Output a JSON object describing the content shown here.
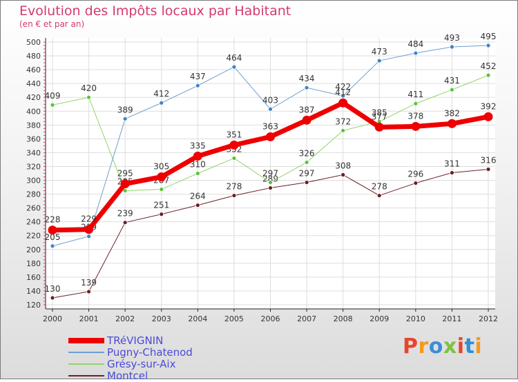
{
  "title": "Evolution des Impôts locaux par Habitant",
  "subtitle": "(en € et par an)",
  "brand": "Proxiti",
  "brand_colors": [
    "#e8452c",
    "#f49a1a",
    "#3a8fd6",
    "#7cc242",
    "#e8452c",
    "#2f8fd6",
    "#f49a1a"
  ],
  "chart_data": {
    "type": "line",
    "title": "Evolution des Impôts locaux par Habitant",
    "xlabel": "",
    "ylabel": "",
    "x": [
      2000,
      2001,
      2002,
      2003,
      2004,
      2005,
      2006,
      2007,
      2008,
      2009,
      2010,
      2011,
      2012
    ],
    "ylim": [
      120,
      500
    ],
    "yticks": [
      120,
      140,
      160,
      180,
      200,
      220,
      240,
      260,
      280,
      300,
      320,
      340,
      360,
      380,
      400,
      420,
      440,
      460,
      480,
      500
    ],
    "grid": true,
    "legend_position": "bottom-left",
    "series": [
      {
        "name": "Montcel",
        "color": "#6b1f24",
        "marker": "#6b1f24",
        "width": 1,
        "values": [
          130,
          139,
          239,
          251,
          264,
          278,
          289,
          297,
          308,
          278,
          296,
          311,
          316
        ],
        "labels": [
          "130",
          "139",
          "239",
          "251",
          "264",
          "278",
          "289",
          "297",
          "308",
          "278",
          "296",
          "311",
          "316"
        ]
      },
      {
        "name": "Grésy-sur-Aix",
        "color": "#8fd46a",
        "marker": "#5cc23a",
        "width": 1,
        "values": [
          409,
          420,
          285,
          287,
          310,
          332,
          297,
          326,
          372,
          385,
          411,
          431,
          452
        ],
        "labels": [
          "409",
          "420",
          "285",
          "287",
          "310",
          "332",
          "297",
          "326",
          "372",
          "385",
          "411",
          "431",
          "452"
        ]
      },
      {
        "name": "Pugny-Chatenod",
        "color": "#6a9fd0",
        "marker": "#3f82c7",
        "width": 1,
        "values": [
          205,
          219,
          389,
          412,
          437,
          464,
          403,
          434,
          422,
          473,
          484,
          493,
          495
        ],
        "labels": [
          "205",
          "219",
          "389",
          "412",
          "437",
          "464",
          "403",
          "434",
          "422",
          "473",
          "484",
          "493",
          "495"
        ]
      },
      {
        "name": "TRéVIGNIN",
        "color": "#ee0000",
        "marker": "#ee0000",
        "width": 7,
        "values": [
          228,
          229,
          295,
          305,
          335,
          351,
          363,
          387,
          412,
          377,
          378,
          382,
          392
        ],
        "labels": [
          "228",
          "229",
          "295",
          "305",
          "335",
          "351",
          "363",
          "387",
          "412",
          "377",
          "378",
          "382",
          "392"
        ]
      }
    ],
    "legend_order": [
      "TRéVIGNIN",
      "Pugny-Chatenod",
      "Grésy-sur-Aix",
      "Montcel"
    ]
  }
}
